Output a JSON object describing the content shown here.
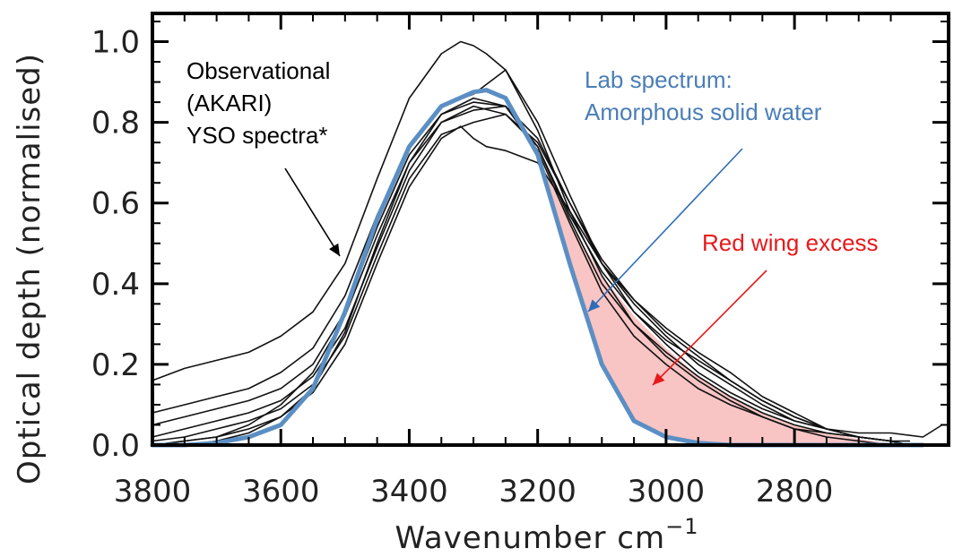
{
  "chart_data": {
    "type": "line",
    "xlabel": "Wavenumber cm",
    "xlabel_sup": "−1",
    "ylabel": "Optical depth (normalised)",
    "xlim": [
      3800,
      2560
    ],
    "ylim": [
      0,
      1.07
    ],
    "x_ticks": [
      3800,
      3600,
      3400,
      3200,
      3000,
      2800
    ],
    "y_ticks": [
      0.0,
      0.2,
      0.4,
      0.6,
      0.8,
      1.0
    ],
    "y_tick_labels": [
      "0.0",
      "0.2",
      "0.4",
      "0.6",
      "0.8",
      "1.0"
    ],
    "annotations": {
      "observational": [
        "Observational",
        "(AKARI)",
        "YSO spectra*"
      ],
      "lab": [
        "Lab spectrum:",
        "Amorphous solid water"
      ],
      "red_wing": "Red wing excess"
    },
    "colors": {
      "lab": "#5b8fc4",
      "lab_text": "#4a7eb6",
      "lab_arrow": "#2e6db5",
      "observed": "#111111",
      "excess_fill": "#f9c4c4",
      "red_text": "#e8191b"
    },
    "lab_spectrum": {
      "x": [
        3800,
        3750,
        3700,
        3650,
        3600,
        3550,
        3500,
        3450,
        3400,
        3350,
        3300,
        3280,
        3250,
        3200,
        3150,
        3100,
        3050,
        3000,
        2950,
        2900,
        2850,
        2800,
        2750,
        2700,
        2650,
        2600
      ],
      "y": [
        0.0,
        0.0,
        0.005,
        0.02,
        0.05,
        0.14,
        0.33,
        0.56,
        0.74,
        0.84,
        0.875,
        0.88,
        0.86,
        0.72,
        0.45,
        0.2,
        0.06,
        0.02,
        0.005,
        0,
        0,
        0,
        0,
        0,
        0,
        0
      ]
    },
    "red_wing_upper": {
      "x": [
        3200,
        3150,
        3100,
        3050,
        3000,
        2950,
        2900,
        2850,
        2800,
        2750,
        2700,
        2650,
        2620
      ],
      "y": [
        0.72,
        0.55,
        0.42,
        0.32,
        0.24,
        0.17,
        0.12,
        0.08,
        0.05,
        0.03,
        0.015,
        0.005,
        0.0
      ]
    },
    "observed_spectra": [
      {
        "x": [
          3800,
          3750,
          3700,
          3650,
          3600,
          3550,
          3500,
          3450,
          3400,
          3350,
          3320,
          3300,
          3280,
          3250,
          3200,
          3150,
          3100,
          3050,
          3000,
          2950,
          2900,
          2850,
          2800,
          2750,
          2700,
          2650,
          2600,
          2570
        ],
        "y": [
          0.16,
          0.19,
          0.21,
          0.23,
          0.27,
          0.33,
          0.45,
          0.66,
          0.86,
          0.97,
          1.0,
          0.99,
          0.97,
          0.93,
          0.8,
          0.62,
          0.45,
          0.33,
          0.25,
          0.18,
          0.13,
          0.09,
          0.06,
          0.04,
          0.03,
          0.03,
          0.02,
          0.05
        ]
      },
      {
        "x": [
          3800,
          3750,
          3700,
          3650,
          3600,
          3550,
          3500,
          3450,
          3400,
          3350,
          3300,
          3250,
          3200,
          3150,
          3100,
          3050,
          3000,
          2950,
          2900,
          2850,
          2800,
          2750,
          2700,
          2650,
          2620
        ],
        "y": [
          0.08,
          0.1,
          0.12,
          0.14,
          0.18,
          0.24,
          0.37,
          0.57,
          0.74,
          0.84,
          0.87,
          0.93,
          0.78,
          0.58,
          0.42,
          0.3,
          0.23,
          0.17,
          0.12,
          0.08,
          0.05,
          0.03,
          0.02,
          0.01,
          0.01
        ]
      },
      {
        "x": [
          3800,
          3750,
          3700,
          3650,
          3600,
          3550,
          3500,
          3450,
          3400,
          3350,
          3300,
          3250,
          3200,
          3150,
          3100,
          3050,
          3000,
          2950,
          2900,
          2850,
          2800,
          2750,
          2700,
          2650,
          2620
        ],
        "y": [
          0.05,
          0.07,
          0.09,
          0.11,
          0.14,
          0.2,
          0.33,
          0.54,
          0.72,
          0.82,
          0.85,
          0.84,
          0.76,
          0.6,
          0.45,
          0.35,
          0.27,
          0.2,
          0.15,
          0.1,
          0.06,
          0.04,
          0.02,
          0.01,
          0.0
        ]
      },
      {
        "x": [
          3800,
          3750,
          3700,
          3650,
          3600,
          3550,
          3500,
          3450,
          3400,
          3350,
          3300,
          3250,
          3200,
          3150,
          3100,
          3050,
          3000,
          2950,
          2900,
          2850,
          2800,
          2750,
          2700,
          2650,
          2620
        ],
        "y": [
          0.02,
          0.04,
          0.06,
          0.08,
          0.11,
          0.17,
          0.29,
          0.49,
          0.68,
          0.8,
          0.83,
          0.84,
          0.74,
          0.57,
          0.43,
          0.33,
          0.26,
          0.21,
          0.16,
          0.11,
          0.07,
          0.04,
          0.02,
          0.01,
          0.0
        ]
      },
      {
        "x": [
          3800,
          3750,
          3700,
          3650,
          3600,
          3550,
          3500,
          3450,
          3400,
          3350,
          3300,
          3250,
          3200,
          3150,
          3100,
          3050,
          3000,
          2950,
          2900,
          2850,
          2800,
          2750,
          2700,
          2650,
          2620
        ],
        "y": [
          0.01,
          0.02,
          0.04,
          0.06,
          0.09,
          0.15,
          0.27,
          0.47,
          0.66,
          0.77,
          0.8,
          0.82,
          0.75,
          0.6,
          0.46,
          0.36,
          0.28,
          0.22,
          0.16,
          0.11,
          0.07,
          0.04,
          0.02,
          0.01,
          0.0
        ]
      },
      {
        "x": [
          3800,
          3750,
          3700,
          3650,
          3600,
          3550,
          3500,
          3450,
          3400,
          3350,
          3320,
          3300,
          3280,
          3250,
          3200,
          3150,
          3100,
          3050,
          3000,
          2950,
          2900,
          2850,
          2800,
          2750,
          2700,
          2650,
          2620
        ],
        "y": [
          0.0,
          0.01,
          0.02,
          0.04,
          0.07,
          0.13,
          0.25,
          0.45,
          0.64,
          0.76,
          0.79,
          0.76,
          0.74,
          0.73,
          0.7,
          0.58,
          0.45,
          0.36,
          0.29,
          0.23,
          0.18,
          0.12,
          0.08,
          0.04,
          0.02,
          0.01,
          0.0
        ]
      },
      {
        "x": [
          3800,
          3750,
          3700,
          3650,
          3600,
          3550,
          3500,
          3450,
          3400,
          3350,
          3300,
          3250,
          3200,
          3150,
          3100,
          3050,
          3000,
          2950,
          2900,
          2850,
          2800,
          2750,
          2700,
          2650,
          2620
        ],
        "y": [
          0.0,
          0.01,
          0.02,
          0.05,
          0.1,
          0.18,
          0.32,
          0.52,
          0.7,
          0.8,
          0.84,
          0.82,
          0.74,
          0.56,
          0.4,
          0.3,
          0.22,
          0.16,
          0.11,
          0.07,
          0.04,
          0.03,
          0.02,
          0.01,
          0.0
        ]
      },
      {
        "x": [
          3800,
          3750,
          3700,
          3650,
          3600,
          3550,
          3500,
          3450,
          3400,
          3350,
          3300,
          3250,
          3200,
          3150,
          3100,
          3050,
          3000,
          2950,
          2900,
          2850,
          2800,
          2750,
          2700,
          2650,
          2620
        ],
        "y": [
          0.0,
          0.0,
          0.01,
          0.03,
          0.07,
          0.14,
          0.28,
          0.5,
          0.7,
          0.82,
          0.86,
          0.84,
          0.73,
          0.55,
          0.38,
          0.27,
          0.2,
          0.14,
          0.1,
          0.07,
          0.04,
          0.02,
          0.01,
          0.0,
          0.0
        ]
      }
    ]
  }
}
